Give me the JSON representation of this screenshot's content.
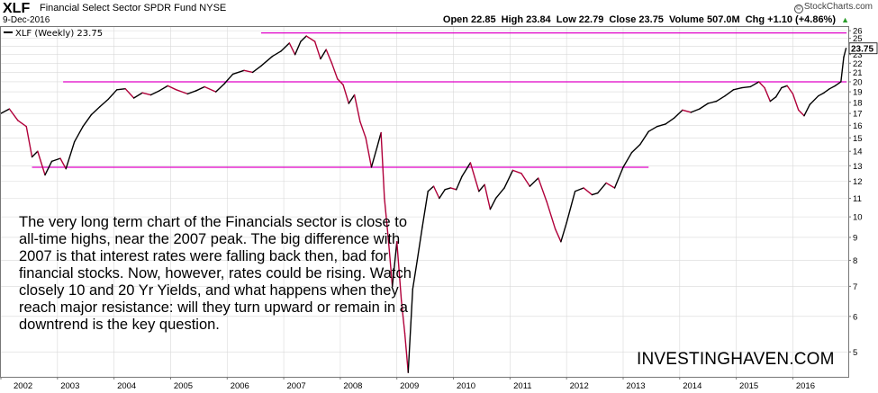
{
  "header": {
    "symbol": "XLF",
    "name": "Financial Select Sector SPDR Fund NYSE",
    "date": "9-Dec-2016",
    "brand": "StockCharts.com",
    "brand_icon": "copyright-icon",
    "ohlc": {
      "open": "Open 22.85",
      "high": "High 23.84",
      "low": "Low 22.79",
      "close": "Close 23.75",
      "volume": "Volume 507.0M",
      "change": "Chg +1.10 (+4.86%)",
      "change_arrow": "▲"
    }
  },
  "legend": {
    "label": "XLF (Weekly) 23.75"
  },
  "last_price_label": "23.75",
  "annotation": "The very long term chart of the Financials sector is close to all-time highs, near the 2007 peak. The big difference with 2007 is that interest rates were falling back then, bad for financial stocks. Now, however, rates could be rising. Watch closely 10 and 20 Yr Yields, and what happens when they reach major resistance: will they turn upward or remain in a downtrend is the key question.",
  "watermark": "INVESTINGHAVEN.COM",
  "colors": {
    "up": "#000000",
    "down": "#b0003a",
    "resistance": "#e000c8",
    "grid": "#d9d9d9"
  },
  "chart_data": {
    "type": "line",
    "scale": "log",
    "series": [
      {
        "name": "XLF (Weekly)",
        "last": 23.75
      }
    ],
    "x_ticks": [
      "2002",
      "2003",
      "2004",
      "2005",
      "2006",
      "2007",
      "2008",
      "2009",
      "2010",
      "2011",
      "2012",
      "2013",
      "2014",
      "2015",
      "2016"
    ],
    "y_ticks": [
      5,
      6,
      7,
      8,
      9,
      10,
      11,
      12,
      13,
      14,
      15,
      16,
      17,
      18,
      19,
      20,
      21,
      22,
      23,
      24,
      25,
      26
    ],
    "ylim": [
      4.4,
      26.5
    ],
    "points": [
      [
        2002.0,
        17.0
      ],
      [
        2002.15,
        17.4
      ],
      [
        2002.3,
        16.4
      ],
      [
        2002.45,
        15.9
      ],
      [
        2002.55,
        13.6
      ],
      [
        2002.65,
        14.0
      ],
      [
        2002.78,
        12.4
      ],
      [
        2002.9,
        13.3
      ],
      [
        2003.05,
        13.5
      ],
      [
        2003.15,
        12.8
      ],
      [
        2003.3,
        14.7
      ],
      [
        2003.45,
        15.9
      ],
      [
        2003.6,
        16.9
      ],
      [
        2003.75,
        17.6
      ],
      [
        2003.9,
        18.3
      ],
      [
        2004.05,
        19.2
      ],
      [
        2004.2,
        19.3
      ],
      [
        2004.35,
        18.4
      ],
      [
        2004.5,
        18.9
      ],
      [
        2004.65,
        18.7
      ],
      [
        2004.8,
        19.1
      ],
      [
        2004.95,
        19.6
      ],
      [
        2005.1,
        19.2
      ],
      [
        2005.3,
        18.8
      ],
      [
        2005.45,
        19.1
      ],
      [
        2005.6,
        19.5
      ],
      [
        2005.8,
        19.0
      ],
      [
        2005.95,
        19.8
      ],
      [
        2006.1,
        20.8
      ],
      [
        2006.3,
        21.2
      ],
      [
        2006.45,
        21.0
      ],
      [
        2006.6,
        21.7
      ],
      [
        2006.8,
        22.8
      ],
      [
        2006.95,
        23.4
      ],
      [
        2007.1,
        24.4
      ],
      [
        2007.2,
        23.0
      ],
      [
        2007.3,
        24.6
      ],
      [
        2007.4,
        25.3
      ],
      [
        2007.55,
        24.6
      ],
      [
        2007.65,
        22.5
      ],
      [
        2007.75,
        23.6
      ],
      [
        2007.85,
        22.0
      ],
      [
        2007.95,
        20.3
      ],
      [
        2008.05,
        19.7
      ],
      [
        2008.15,
        17.9
      ],
      [
        2008.25,
        18.7
      ],
      [
        2008.35,
        16.3
      ],
      [
        2008.45,
        15.0
      ],
      [
        2008.55,
        12.9
      ],
      [
        2008.65,
        14.3
      ],
      [
        2008.72,
        15.4
      ],
      [
        2008.78,
        11.0
      ],
      [
        2008.85,
        8.9
      ],
      [
        2008.92,
        7.0
      ],
      [
        2009.0,
        8.8
      ],
      [
        2009.08,
        6.5
      ],
      [
        2009.14,
        5.5
      ],
      [
        2009.2,
        4.5
      ],
      [
        2009.28,
        6.9
      ],
      [
        2009.36,
        8.0
      ],
      [
        2009.45,
        9.5
      ],
      [
        2009.55,
        11.4
      ],
      [
        2009.65,
        11.7
      ],
      [
        2009.75,
        11.0
      ],
      [
        2009.85,
        11.5
      ],
      [
        2009.95,
        11.6
      ],
      [
        2010.05,
        11.5
      ],
      [
        2010.15,
        12.3
      ],
      [
        2010.3,
        13.2
      ],
      [
        2010.45,
        11.4
      ],
      [
        2010.55,
        11.8
      ],
      [
        2010.65,
        10.4
      ],
      [
        2010.75,
        11.0
      ],
      [
        2010.9,
        11.6
      ],
      [
        2011.05,
        12.7
      ],
      [
        2011.2,
        12.5
      ],
      [
        2011.35,
        11.7
      ],
      [
        2011.5,
        12.2
      ],
      [
        2011.65,
        10.8
      ],
      [
        2011.8,
        9.4
      ],
      [
        2011.9,
        8.8
      ],
      [
        2012.0,
        9.7
      ],
      [
        2012.15,
        11.4
      ],
      [
        2012.3,
        11.6
      ],
      [
        2012.45,
        11.2
      ],
      [
        2012.55,
        11.3
      ],
      [
        2012.7,
        11.9
      ],
      [
        2012.85,
        11.6
      ],
      [
        2013.0,
        12.9
      ],
      [
        2013.15,
        13.9
      ],
      [
        2013.3,
        14.5
      ],
      [
        2013.45,
        15.5
      ],
      [
        2013.6,
        15.9
      ],
      [
        2013.75,
        16.1
      ],
      [
        2013.9,
        16.6
      ],
      [
        2014.05,
        17.3
      ],
      [
        2014.2,
        17.1
      ],
      [
        2014.35,
        17.4
      ],
      [
        2014.5,
        17.9
      ],
      [
        2014.65,
        18.1
      ],
      [
        2014.8,
        18.6
      ],
      [
        2014.95,
        19.2
      ],
      [
        2015.1,
        19.4
      ],
      [
        2015.25,
        19.5
      ],
      [
        2015.4,
        20.0
      ],
      [
        2015.5,
        19.4
      ],
      [
        2015.6,
        18.1
      ],
      [
        2015.7,
        18.5
      ],
      [
        2015.8,
        19.4
      ],
      [
        2015.9,
        19.6
      ],
      [
        2016.0,
        18.8
      ],
      [
        2016.1,
        17.3
      ],
      [
        2016.2,
        16.8
      ],
      [
        2016.3,
        17.8
      ],
      [
        2016.45,
        18.6
      ],
      [
        2016.55,
        18.9
      ],
      [
        2016.65,
        19.3
      ],
      [
        2016.75,
        19.6
      ],
      [
        2016.85,
        20.0
      ],
      [
        2016.9,
        22.7
      ],
      [
        2016.94,
        23.75
      ]
    ],
    "resistance_lines": [
      {
        "value": 25.7,
        "from": 2006.6,
        "to": 2016.95
      },
      {
        "value": 20.0,
        "from": 2003.1,
        "to": 2016.95
      },
      {
        "value": 12.9,
        "from": 2002.55,
        "to": 2013.45
      }
    ]
  }
}
